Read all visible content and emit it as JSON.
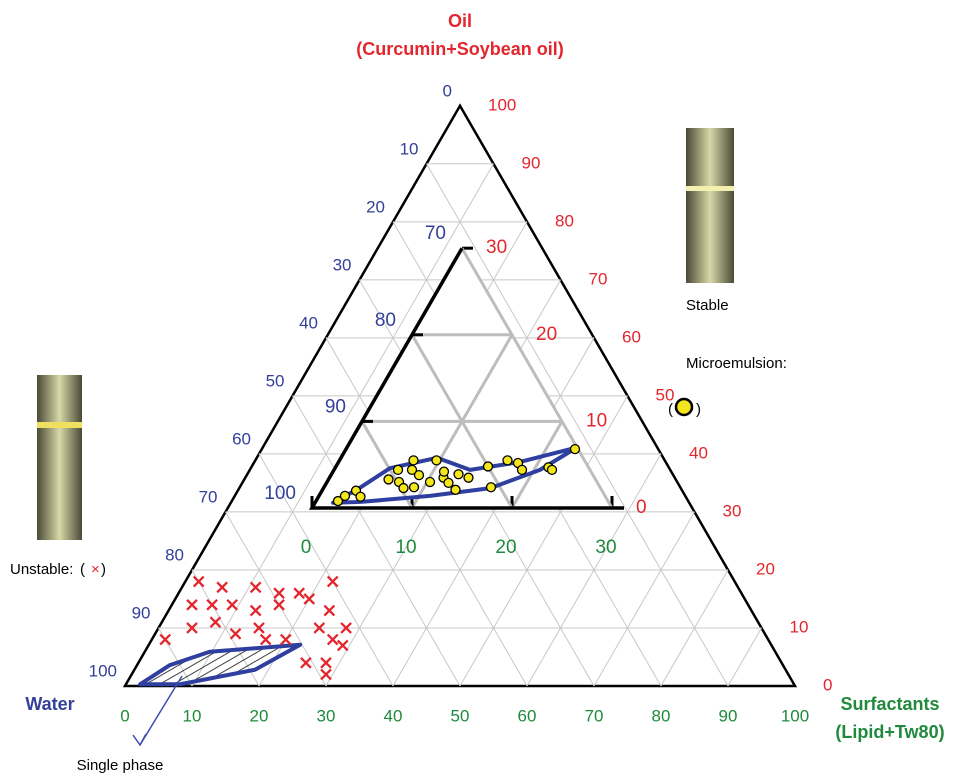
{
  "chart_data": {
    "type": "ternary",
    "title": "Oil",
    "subtitle": "(Curcumin+Soybean oil)",
    "left_label": "Water",
    "right_label": "Surfactants",
    "right_label_sub": "(Lipid+Tw80)",
    "lim": [
      0,
      100
    ],
    "water_ticks": [
      0,
      10,
      20,
      30,
      40,
      50,
      60,
      70,
      80,
      90,
      100
    ],
    "oil_ticks": [
      0,
      10,
      20,
      30,
      40,
      50,
      60,
      70,
      80,
      90,
      100
    ],
    "surfactant_ticks": [
      0,
      10,
      20,
      30,
      40,
      50,
      60,
      70,
      80,
      90,
      100
    ],
    "grid": true,
    "inset": {
      "lim": [
        0,
        30
      ],
      "water_ticks": [
        70,
        80,
        90,
        100
      ],
      "oil_ticks": [
        0,
        10,
        20,
        30
      ],
      "surfactant_ticks": [
        0,
        10,
        20,
        30
      ]
    },
    "legend_brackets": [
      "(",
      ")"
    ],
    "series": [
      {
        "name": "Microemulsion:",
        "note": "Stable",
        "color": "#f3e61c",
        "marker": "circle",
        "panel": "inset",
        "surfactant": [
          2.2,
          2.6,
          3.4,
          4.2,
          6.0,
          6.4,
          7.4,
          7.8,
          7.2,
          8.0,
          8.8,
          9.0,
          10.3,
          9.7,
          11.4,
          11.1,
          12.2,
          13.3,
          12.7,
          13.9,
          15.2,
          16.7,
          16.8,
          18.0,
          18.8,
          21.3,
          21.8,
          22.9
        ],
        "oil": [
          0.8,
          1.4,
          2.0,
          1.3,
          3.3,
          4.4,
          5.5,
          4.4,
          3.0,
          2.3,
          3.8,
          2.4,
          3.0,
          5.5,
          3.5,
          4.2,
          2.9,
          2.1,
          3.9,
          3.5,
          4.8,
          2.4,
          5.5,
          5.2,
          4.4,
          4.7,
          4.4,
          6.8
        ]
      },
      {
        "name": "Unstable:",
        "color": "#e3262d",
        "marker": "×",
        "panel": "main",
        "surfactant": [
          2,
          6,
          11,
          15,
          18,
          22,
          3,
          6,
          9,
          13,
          16,
          20,
          24,
          28,
          2,
          5,
          8,
          12,
          15,
          17,
          20,
          24,
          27,
          29,
          25,
          28,
          29
        ],
        "oil": [
          18,
          17,
          17,
          16,
          16,
          18,
          14,
          14,
          14,
          13,
          14,
          15,
          13,
          10,
          8,
          10,
          11,
          9,
          10,
          8,
          8,
          10,
          8,
          7,
          4,
          4,
          2
        ]
      }
    ],
    "regions": [
      {
        "color": "#2f3f9f",
        "panel": "inset",
        "hatch": false,
        "surfactant": [
          1.8,
          3.6,
          5.5,
          9.6,
          13.6,
          18.1,
          23.0,
          20.6,
          16.7,
          11.1,
          4.5
        ],
        "oil": [
          0.6,
          2.3,
          4.6,
          5.8,
          4.4,
          5.3,
          7.0,
          4.4,
          2.3,
          1.4,
          0.7
        ]
      },
      {
        "name": "Single phase",
        "color": "#2f3f9f",
        "panel": "main",
        "hatch": true,
        "surfactant": [
          2.1,
          4.9,
          9.7,
          22.6,
          18.0,
          8.1
        ],
        "oil": [
          0.3,
          3.6,
          5.9,
          7.1,
          2.8,
          0.3
        ]
      }
    ]
  }
}
